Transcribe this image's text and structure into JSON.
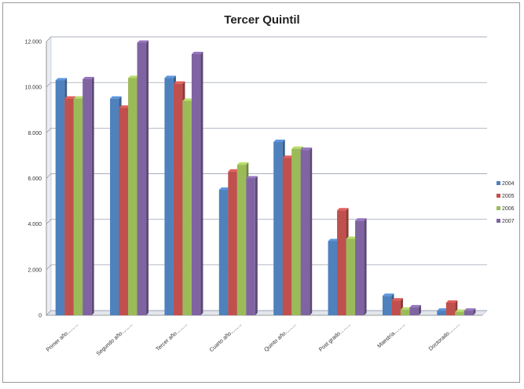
{
  "chart_data": {
    "type": "bar",
    "title": "Tercer Quintil",
    "xlabel": "",
    "ylabel": "",
    "categories": [
      "Primer año.........",
      "Segundo año.........",
      "Tercer año.........",
      "Cuarto año.........",
      "Quinto año.........",
      "Post grado.........",
      "Maestría.........",
      "Doctorado........."
    ],
    "series": [
      {
        "name": "2004",
        "color": "#4f81bd",
        "values": [
          10300,
          9500,
          10400,
          5500,
          7600,
          3250,
          850,
          200
        ]
      },
      {
        "name": "2005",
        "color": "#c0504d",
        "values": [
          9500,
          9100,
          10150,
          6300,
          6900,
          4600,
          650,
          550
        ]
      },
      {
        "name": "2006",
        "color": "#9bbb59",
        "values": [
          9500,
          10400,
          9400,
          6600,
          7300,
          3350,
          250,
          150
        ]
      },
      {
        "name": "2007",
        "color": "#8064a2",
        "values": [
          10350,
          11950,
          11450,
          6000,
          7250,
          4150,
          350,
          200
        ]
      }
    ],
    "yticks": [
      "0",
      "2.000",
      "4.000",
      "6.000",
      "8.000",
      "10.000",
      "12.000"
    ],
    "ylim": [
      0,
      12000
    ],
    "grid": true,
    "legend_position": "right"
  }
}
